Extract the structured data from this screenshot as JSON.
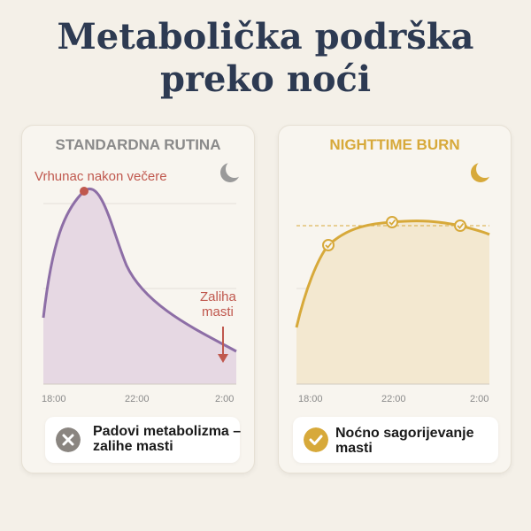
{
  "title": {
    "line1": "Metabolička podrška",
    "line2": "preko noći"
  },
  "left_card": {
    "heading": "STANDARDNA RUTINA",
    "peak_label": "Vrhunac nakon večere",
    "fat_label_1": "Zaliha",
    "fat_label_2": "masti",
    "x_ticks": [
      "18:00",
      "22:00",
      "2:00"
    ],
    "footer_text": "Padovi metabolizma – zalihe masti",
    "icons": {
      "moon": "moon-icon",
      "footer": "x-icon",
      "arrow": "arrow-down-icon"
    },
    "colors": {
      "line": "#8d6ea6",
      "fill": "#e6d8e3",
      "accent": "#c0584e",
      "moon": "#9a9a9a"
    }
  },
  "right_card": {
    "heading": "NIGHTTIME BURN",
    "x_ticks": [
      "18:00",
      "22:00",
      "2:00"
    ],
    "footer_text": "Noćno sagorijevanje masti",
    "icons": {
      "moon": "moon-icon",
      "footer": "check-icon",
      "markers": "check-icon"
    },
    "colors": {
      "line": "#d7a93a",
      "fill": "#f3e8d0",
      "moon": "#d7a93a"
    }
  }
}
